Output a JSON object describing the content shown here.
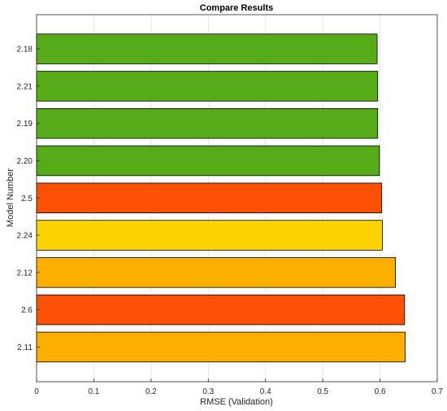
{
  "chart_data": {
    "type": "bar",
    "orientation": "horizontal",
    "title": "Compare Results",
    "xlabel": "RMSE (Validation)",
    "ylabel": "Model Number",
    "xlim": [
      0,
      0.7
    ],
    "xticks": [
      0,
      0.1,
      0.2,
      0.3,
      0.4,
      0.5,
      0.6,
      0.7
    ],
    "grid": true,
    "categories": [
      "2.18",
      "2.21",
      "2.19",
      "2.20",
      "2.5",
      "2.24",
      "2.12",
      "2.6",
      "2.11"
    ],
    "values": [
      0.595,
      0.596,
      0.596,
      0.599,
      0.603,
      0.604,
      0.627,
      0.643,
      0.644
    ],
    "bar_colors": [
      "#56ab19",
      "#56ab19",
      "#56ab19",
      "#56ab19",
      "#fc5105",
      "#fcd500",
      "#fcaf00",
      "#fc5105",
      "#fcaf00"
    ]
  }
}
